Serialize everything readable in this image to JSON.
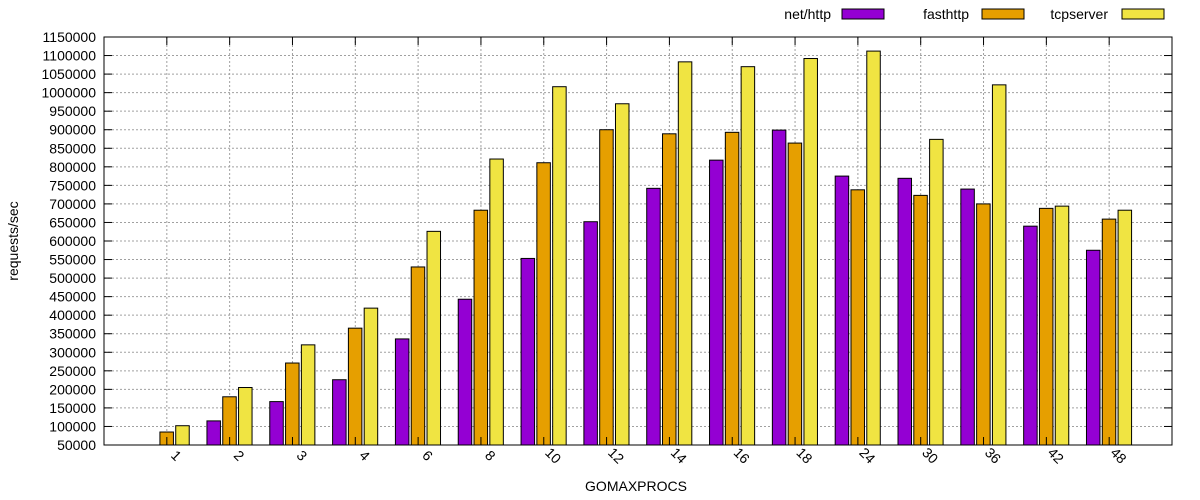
{
  "chart_data": {
    "type": "bar",
    "title": "",
    "xlabel": "GOMAXPROCS",
    "ylabel": "requests/sec",
    "ylim": [
      50000,
      1150000
    ],
    "yticks": [
      "50000",
      "100000",
      "150000",
      "200000",
      "250000",
      "300000",
      "350000",
      "400000",
      "450000",
      "500000",
      "550000",
      "600000",
      "650000",
      "700000",
      "750000",
      "800000",
      "850000",
      "900000",
      "950000",
      "1000000",
      "1050000",
      "1100000",
      "1150000"
    ],
    "categories": [
      "1",
      "2",
      "3",
      "4",
      "6",
      "8",
      "10",
      "12",
      "14",
      "16",
      "18",
      "24",
      "30",
      "36",
      "42",
      "48"
    ],
    "grid": true,
    "legend_position": "top-right",
    "series": [
      {
        "name": "net/http",
        "color": "#9400d3",
        "values": [
          50000,
          115000,
          167000,
          226000,
          336000,
          443000,
          553000,
          652000,
          742000,
          818000,
          899000,
          775000,
          769000,
          740000,
          640000,
          575000
        ]
      },
      {
        "name": "fasthttp",
        "color": "#e69f00",
        "values": [
          85000,
          180000,
          271000,
          365000,
          530000,
          683000,
          811000,
          900000,
          889000,
          893000,
          864000,
          738000,
          723000,
          700000,
          688000,
          659000
        ]
      },
      {
        "name": "tcpserver",
        "color": "#f0e442",
        "values": [
          102000,
          205000,
          320000,
          419000,
          626000,
          821000,
          1016000,
          970000,
          1083000,
          1070000,
          1092000,
          1112000,
          874000,
          1021000,
          694000,
          683000
        ]
      }
    ]
  }
}
